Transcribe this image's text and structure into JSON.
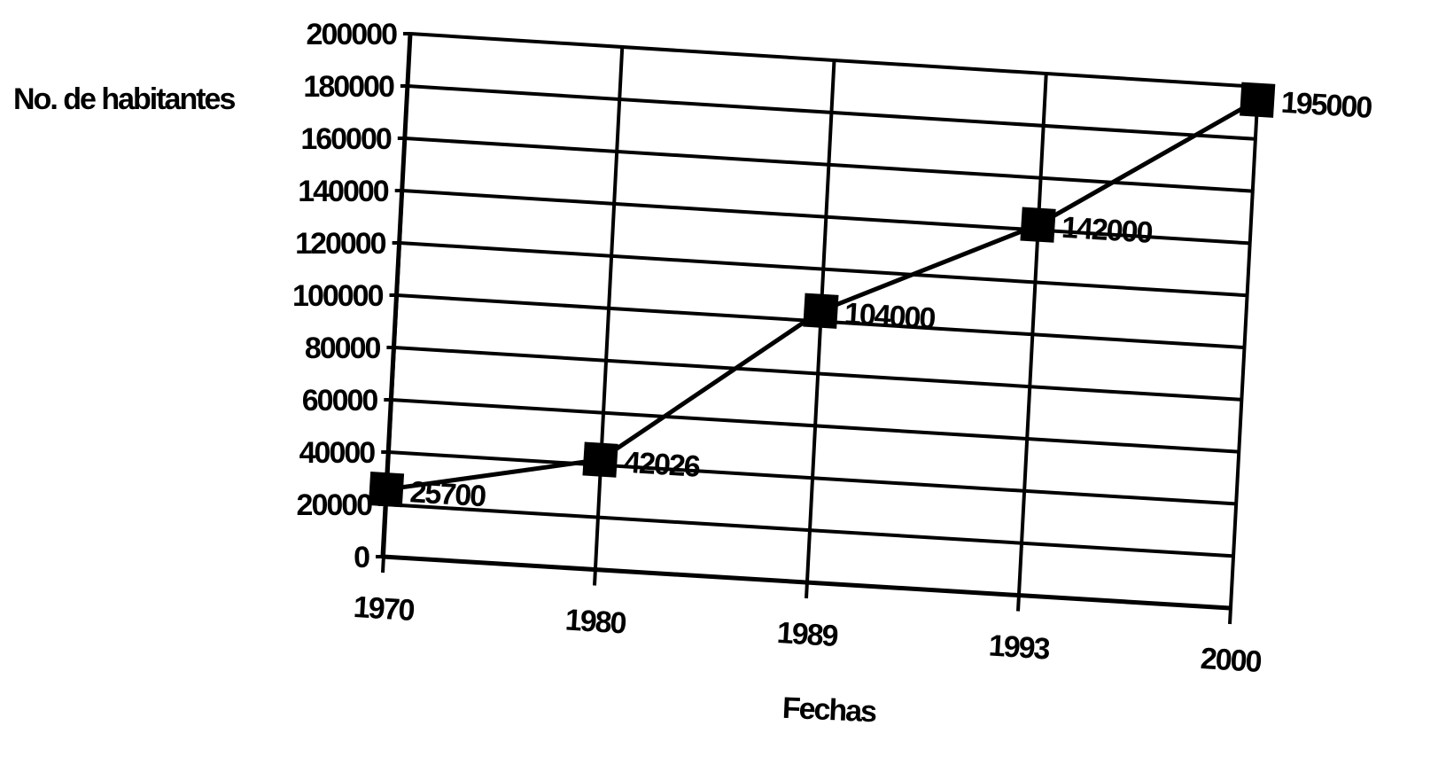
{
  "chart_data": {
    "type": "line",
    "title": "",
    "xlabel": "Fechas",
    "ylabel": "No. de habitantes",
    "categories": [
      "1970",
      "1980",
      "1989",
      "1993",
      "2000"
    ],
    "series": [
      {
        "values": [
          25700,
          42026,
          104000,
          142000,
          195000
        ],
        "data_labels": [
          "25700",
          "42026",
          "104000",
          "142000",
          "195000"
        ],
        "marker": "square",
        "color": "#000000"
      }
    ],
    "yticks": [
      "0",
      "20000",
      "40000",
      "60000",
      "80000",
      "100000",
      "120000",
      "140000",
      "160000",
      "180000",
      "200000"
    ],
    "ylim": [
      0,
      200000
    ],
    "grid": true
  }
}
